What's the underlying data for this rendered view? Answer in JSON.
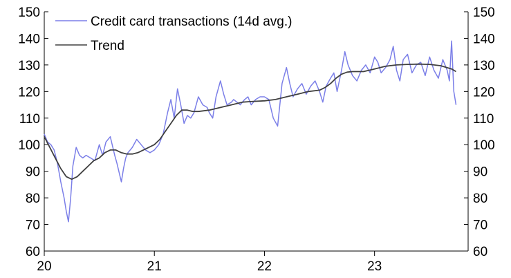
{
  "chart_data": {
    "type": "line",
    "xlabel": "",
    "ylabel": "",
    "xlim": [
      20.0,
      23.85
    ],
    "ylim": [
      60,
      150
    ],
    "x_ticks": [
      20,
      21,
      22,
      23
    ],
    "x_tick_labels": [
      "20",
      "21",
      "22",
      "23"
    ],
    "y_ticks": [
      60,
      70,
      80,
      90,
      100,
      110,
      120,
      130,
      140,
      150
    ],
    "y_tick_labels": [
      "60",
      "70",
      "80",
      "90",
      "100",
      "110",
      "120",
      "130",
      "140",
      "150"
    ],
    "legend_position": "top-left",
    "grid": false,
    "series": [
      {
        "name": "Credit card transactions (14d avg.)",
        "color": "#7b7fe8",
        "x": [
          20.0,
          20.03,
          20.06,
          20.09,
          20.12,
          20.15,
          20.18,
          20.2,
          20.22,
          20.24,
          20.26,
          20.29,
          20.32,
          20.35,
          20.38,
          20.42,
          20.46,
          20.5,
          20.53,
          20.56,
          20.6,
          20.64,
          20.66,
          20.7,
          20.72,
          20.74,
          20.76,
          20.8,
          20.84,
          20.88,
          20.92,
          20.96,
          21.0,
          21.04,
          21.08,
          21.12,
          21.15,
          21.18,
          21.21,
          21.24,
          21.27,
          21.3,
          21.33,
          21.36,
          21.4,
          21.44,
          21.48,
          21.5,
          21.53,
          21.56,
          21.6,
          21.63,
          21.66,
          21.7,
          21.72,
          21.75,
          21.78,
          21.82,
          21.85,
          21.88,
          21.92,
          21.96,
          22.0,
          22.04,
          22.08,
          22.12,
          22.16,
          22.2,
          22.23,
          22.26,
          22.3,
          22.34,
          22.38,
          22.42,
          22.46,
          22.5,
          22.53,
          22.56,
          22.6,
          22.63,
          22.66,
          22.7,
          22.73,
          22.76,
          22.8,
          22.84,
          22.88,
          22.92,
          22.96,
          23.0,
          23.03,
          23.06,
          23.1,
          23.14,
          23.17,
          23.2,
          23.23,
          23.26,
          23.3,
          23.34,
          23.38,
          23.42,
          23.46,
          23.5,
          23.54,
          23.58,
          23.62,
          23.66,
          23.68,
          23.7,
          23.72,
          23.74
        ],
        "values": [
          104,
          101,
          100,
          98,
          93,
          86,
          80,
          75,
          71,
          80,
          92,
          99,
          96,
          95,
          96,
          95,
          94,
          100,
          96,
          101,
          103,
          96,
          93,
          86,
          91,
          95,
          97,
          99,
          102,
          100,
          98,
          97,
          98,
          100,
          104,
          112,
          117,
          110,
          121,
          115,
          108,
          111,
          110,
          112,
          118,
          115,
          114,
          112,
          110,
          118,
          124,
          119,
          115,
          116,
          117,
          116,
          115,
          117,
          118,
          115,
          117,
          118,
          118,
          117,
          110,
          107,
          123,
          129,
          123,
          118,
          121,
          123,
          119,
          122,
          124,
          120,
          116,
          122,
          125,
          127,
          120,
          128,
          135,
          130,
          126,
          124,
          128,
          130,
          127,
          133,
          131,
          127,
          129,
          132,
          137,
          128,
          124,
          132,
          134,
          127,
          130,
          131,
          126,
          133,
          128,
          125,
          132,
          128,
          124,
          139,
          120,
          115
        ]
      },
      {
        "name": "Trend",
        "color": "#404040",
        "x": [
          20.0,
          20.05,
          20.1,
          20.15,
          20.2,
          20.25,
          20.3,
          20.35,
          20.4,
          20.45,
          20.5,
          20.55,
          20.6,
          20.65,
          20.7,
          20.75,
          20.8,
          20.85,
          20.9,
          20.95,
          21.0,
          21.05,
          21.1,
          21.15,
          21.2,
          21.25,
          21.3,
          21.35,
          21.4,
          21.5,
          21.6,
          21.7,
          21.8,
          21.9,
          22.0,
          22.1,
          22.2,
          22.3,
          22.4,
          22.5,
          22.55,
          22.6,
          22.65,
          22.7,
          22.75,
          22.8,
          22.9,
          23.0,
          23.1,
          23.2,
          23.3,
          23.4,
          23.5,
          23.6,
          23.7,
          23.74
        ],
        "values": [
          103,
          99,
          95,
          91,
          88,
          87,
          88,
          90,
          92,
          94,
          95,
          97,
          98,
          98,
          97,
          96.5,
          96.5,
          97,
          98,
          99,
          100,
          102,
          105,
          108,
          111,
          113,
          113,
          112.5,
          112.5,
          113,
          114,
          115,
          116,
          116.3,
          116.5,
          117,
          118,
          119,
          120,
          120.5,
          121.5,
          123,
          125,
          126.5,
          127.3,
          127.5,
          127.5,
          128.5,
          129.5,
          130,
          130.2,
          130.3,
          130.2,
          129.7,
          128.5,
          127.5
        ]
      }
    ]
  }
}
